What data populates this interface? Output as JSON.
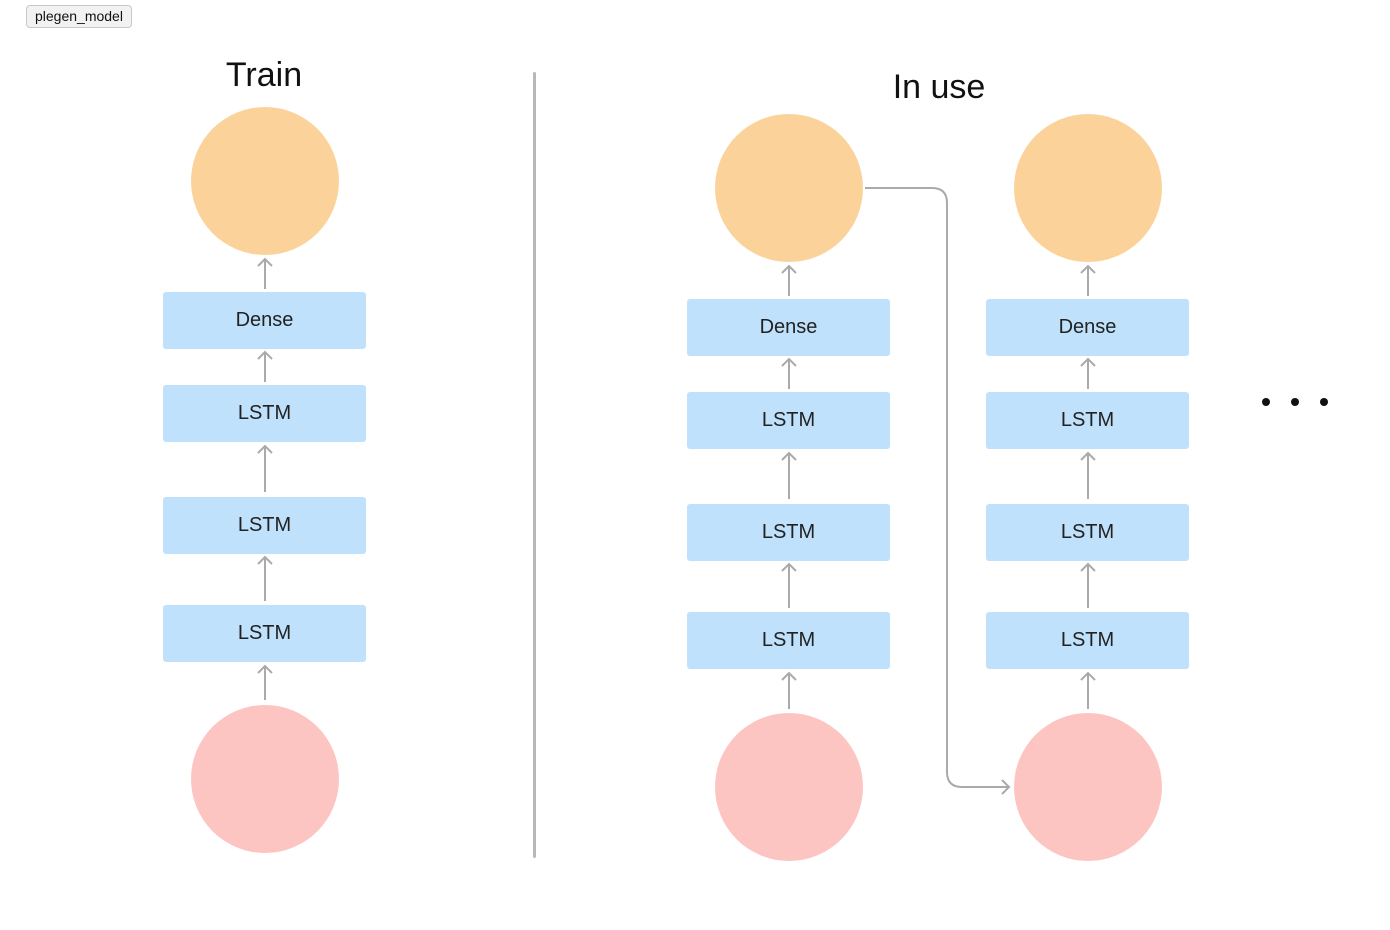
{
  "window": {
    "tag_label": "plegen_model"
  },
  "train": {
    "title": "Train",
    "layers": [
      "Dense",
      "LSTM",
      "LSTM",
      "LSTM"
    ]
  },
  "in_use": {
    "title": "In use",
    "steps": [
      {
        "layers": [
          "Dense",
          "LSTM",
          "LSTM",
          "LSTM"
        ]
      },
      {
        "layers": [
          "Dense",
          "LSTM",
          "LSTM",
          "LSTM"
        ]
      }
    ]
  },
  "colors": {
    "output_node": "#fbd39a",
    "input_node": "#fcc5c1",
    "layer_box": "#bfe1fb",
    "arrow": "#aaaaaa"
  }
}
